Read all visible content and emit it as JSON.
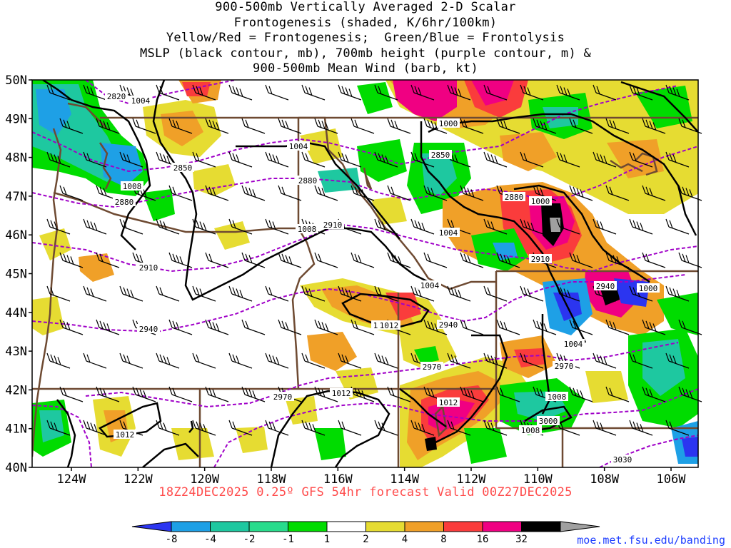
{
  "title": {
    "line1": "900-500mb Vertically Averaged 2-D Scalar",
    "line2": "Frontogenesis (shaded, K/6hr/100km)",
    "line3": "Yellow/Red = Frontogenesis;  Green/Blue = Frontolysis",
    "line4": "MSLP (black contour, mb), 700mb height (purple contour, m) &",
    "line5": "900-500mb Mean Wind (barb, kt)"
  },
  "footer": {
    "run_label": "18Z24DEC2025 0.25º GFS 54hr forecast Valid 00Z27DEC2025",
    "credit": "moe.met.fsu.edu/banding"
  },
  "map": {
    "lat_labels": [
      "50N",
      "49N",
      "48N",
      "47N",
      "46N",
      "45N",
      "44N",
      "43N",
      "42N",
      "41N",
      "40N"
    ],
    "lon_labels": [
      "124W",
      "122W",
      "120W",
      "118W",
      "116W",
      "114W",
      "112W",
      "110W",
      "108W",
      "106W"
    ]
  },
  "colorbar": {
    "labels": [
      "-8",
      "-4",
      "-2",
      "-1",
      "1",
      "2",
      "4",
      "8",
      "16",
      "32"
    ],
    "colors": [
      "#2b35f0",
      "#1ea0e6",
      "#1ec8a0",
      "#28dc8c",
      "#00dc00",
      "#ffffff",
      "#e6dc32",
      "#f0a028",
      "#fa3c3c",
      "#f00082",
      "#000000",
      "#a0a0a0"
    ]
  },
  "contour_labels": {
    "mslp": [
      "1004",
      "1000",
      "1004",
      "1008",
      "1008",
      "1004",
      "1000",
      "1004",
      "1008",
      "1000",
      "1012",
      "1004",
      "1012",
      "1012",
      "1008",
      "1008",
      "1012"
    ],
    "height": [
      "2820",
      "2850",
      "2880",
      "2850",
      "2880",
      "2880",
      "2910",
      "2910",
      "2910",
      "2940",
      "2940",
      "2940",
      "2970",
      "2970",
      "2970",
      "3000",
      "3030"
    ]
  }
}
